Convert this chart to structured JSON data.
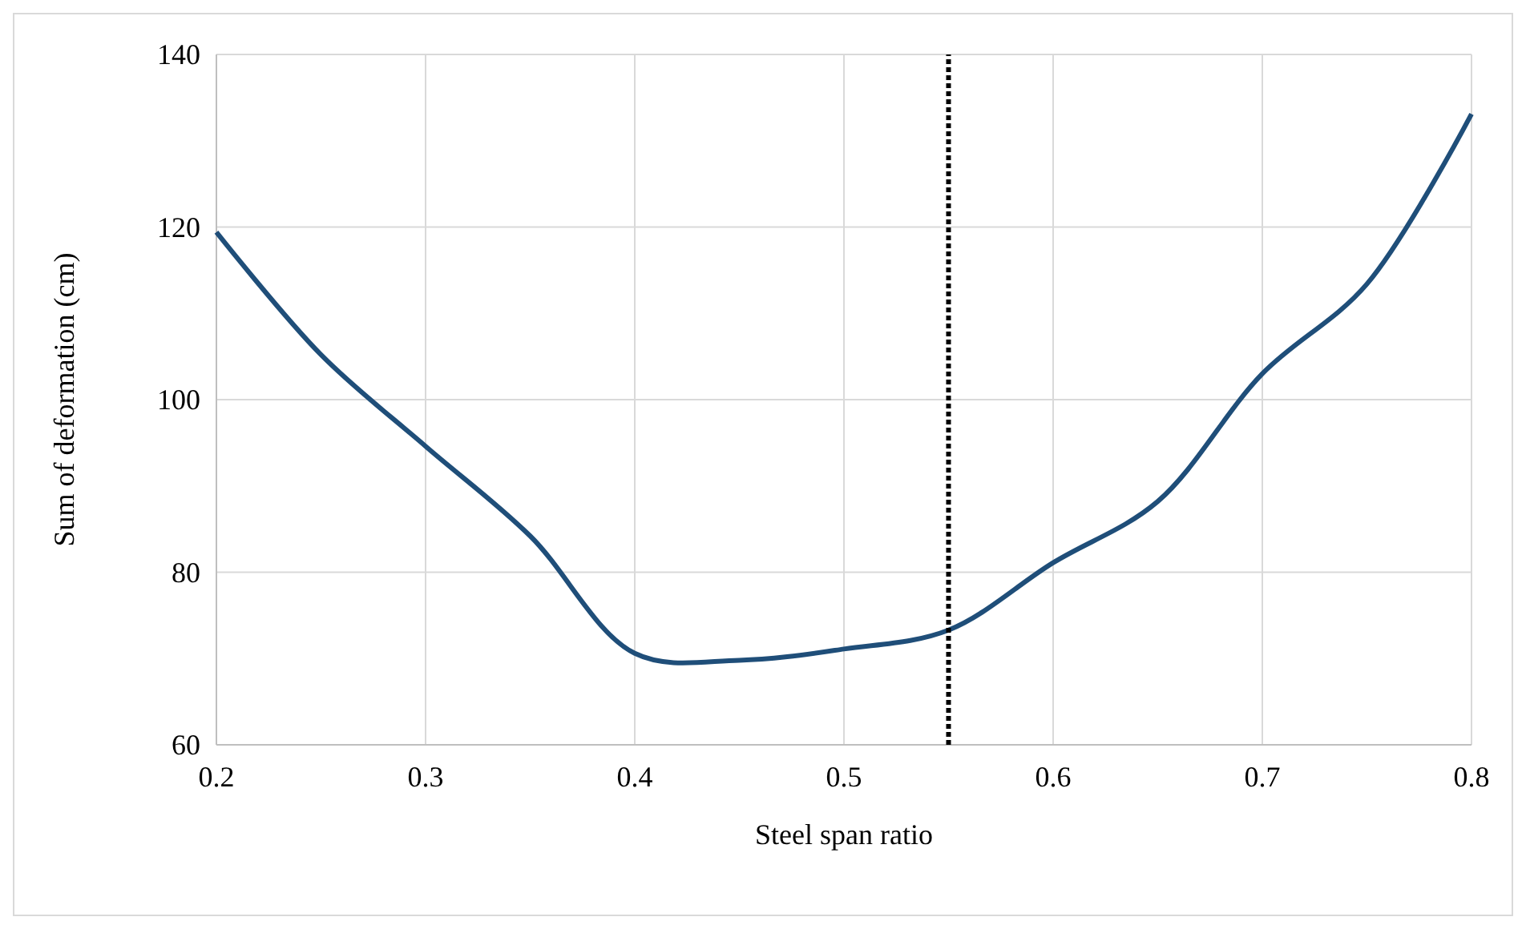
{
  "chart_data": {
    "type": "line",
    "xlabel": "Steel span ratio",
    "ylabel": "Sum of deformation (cm)",
    "x": [
      0.2,
      0.25,
      0.3,
      0.35,
      0.4,
      0.45,
      0.5,
      0.55,
      0.6,
      0.65,
      0.7,
      0.75,
      0.8
    ],
    "series": [
      {
        "color": "#1f4e79",
        "values": [
          119.4,
          105.2,
          94.6,
          84.2,
          70.6,
          69.8,
          71.1,
          73.3,
          81.1,
          88.2,
          103.0,
          113.4,
          133.1
        ]
      }
    ],
    "xlim": [
      0.2,
      0.8
    ],
    "xticks": [
      {
        "value": 0.2,
        "label": "0.2"
      },
      {
        "value": 0.3,
        "label": "0.3"
      },
      {
        "value": 0.4,
        "label": "0.4"
      },
      {
        "value": 0.5,
        "label": "0.5"
      },
      {
        "value": 0.6,
        "label": "0.6"
      },
      {
        "value": 0.7,
        "label": "0.7"
      },
      {
        "value": 0.8,
        "label": "0.8"
      }
    ],
    "ylim": [
      60,
      140
    ],
    "yticks": [
      60,
      80,
      100,
      120,
      140
    ],
    "grid": true,
    "marker": "none",
    "line_style": "solid",
    "ref_lines": [
      {
        "axis": "x",
        "value": 0.55,
        "color": "#000000",
        "line_style": "dotted"
      }
    ]
  }
}
